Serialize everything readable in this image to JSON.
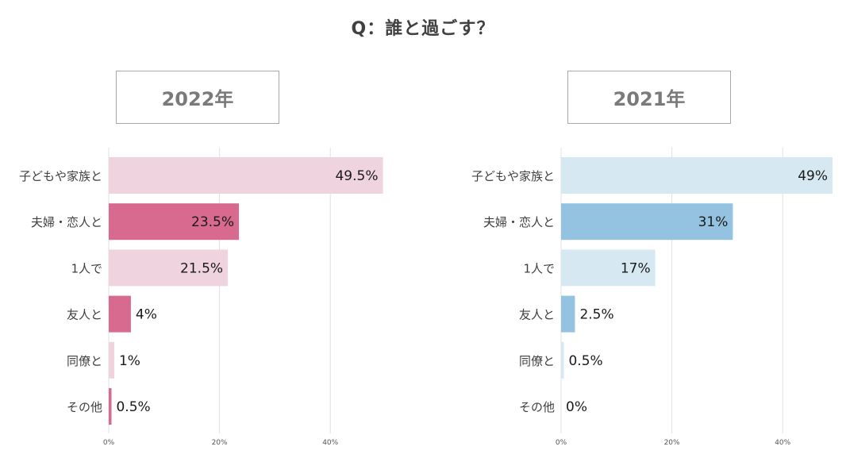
{
  "title": "Q：誰と過ごす？",
  "chart_data": [
    {
      "type": "bar",
      "orientation": "horizontal",
      "title": "2022年",
      "categories": [
        "子どもや家族と",
        "夫婦・恋人と",
        "1人で",
        "友人と",
        "同僚と",
        "その他"
      ],
      "values": [
        49.5,
        23.5,
        21.5,
        4,
        1,
        0.5
      ],
      "value_labels": [
        "49.5%",
        "23.5%",
        "21.5%",
        "4%",
        "1%",
        "0.5%"
      ],
      "xlim": [
        0,
        50
      ],
      "xticks": [
        0,
        20,
        40
      ],
      "xtick_labels": [
        "0%",
        "20%",
        "40%"
      ],
      "grid": true,
      "colors": {
        "light": "#efd3de",
        "highlight": "#d96a8f"
      },
      "highlight": [
        1,
        3,
        5
      ]
    },
    {
      "type": "bar",
      "orientation": "horizontal",
      "title": "2021年",
      "categories": [
        "子どもや家族と",
        "夫婦・恋人と",
        "1人で",
        "友人と",
        "同僚と",
        "その他"
      ],
      "values": [
        49,
        31,
        17,
        2.5,
        0.5,
        0
      ],
      "value_labels": [
        "49%",
        "31%",
        "17%",
        "2.5%",
        "0.5%",
        "0%"
      ],
      "xlim": [
        0,
        50
      ],
      "xticks": [
        0,
        20,
        40
      ],
      "xtick_labels": [
        "0%",
        "20%",
        "40%"
      ],
      "grid": true,
      "colors": {
        "light": "#d6e9f3",
        "highlight": "#93c3e0"
      },
      "highlight": [
        1,
        3
      ]
    }
  ]
}
